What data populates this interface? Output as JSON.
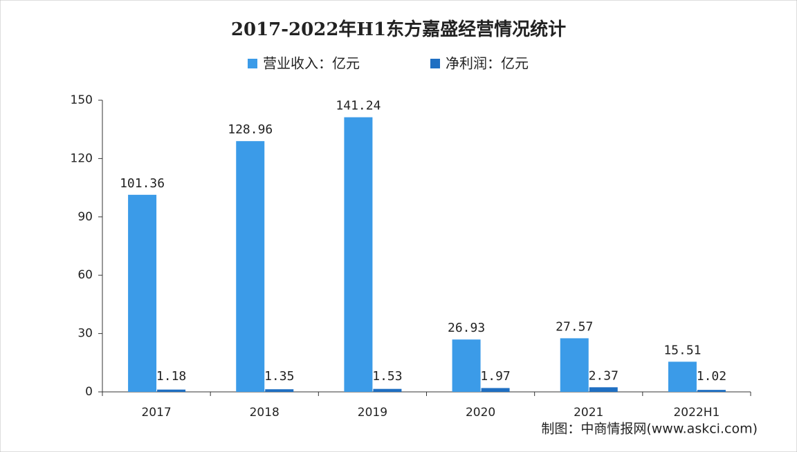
{
  "chart_data": {
    "type": "bar",
    "title": "2017-2022年H1东方嘉盛经营情况统计",
    "categories": [
      "2017",
      "2018",
      "2019",
      "2020",
      "2021",
      "2022H1"
    ],
    "series": [
      {
        "name": "营业收入：亿元",
        "color": "#3b9be8",
        "values": [
          101.36,
          128.96,
          141.24,
          26.93,
          27.57,
          15.51
        ]
      },
      {
        "name": "净利润：亿元",
        "color": "#1f6fc2",
        "values": [
          1.18,
          1.35,
          1.53,
          1.97,
          2.37,
          1.02
        ]
      }
    ],
    "ylim": [
      0,
      150
    ],
    "yticks": [
      0,
      30,
      60,
      90,
      120,
      150
    ],
    "source": "制图：中商情报网(www.askci.com)"
  }
}
